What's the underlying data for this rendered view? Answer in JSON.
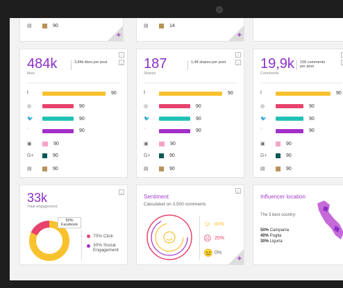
{
  "colors": {
    "yellow": "#f8c22e",
    "pink": "#e8436d",
    "teal": "#21c2b6",
    "purple": "#a22fc7",
    "lightpink": "#f5a3c7",
    "darkteal": "#0b5957",
    "tan": "#b8925a"
  },
  "top_row": [
    {
      "value": "90"
    },
    {
      "value": "14"
    }
  ],
  "cards": [
    {
      "big": "484k",
      "sub": "likes",
      "per": "3,84k likes per post",
      "rows": [
        {
          "icon": "f",
          "value": "90",
          "color": "yellow",
          "len": 0.72,
          "type": "bar"
        },
        {
          "icon": "◎",
          "value": "90",
          "color": "pink",
          "len": 0.36,
          "type": "bar"
        },
        {
          "icon": "🐦",
          "value": "90",
          "color": "teal",
          "len": 0.36,
          "type": "bar"
        },
        {
          "icon": "ʾ",
          "value": "90",
          "color": "purple",
          "len": 0.36,
          "type": "bar"
        },
        {
          "icon": "▣",
          "value": "90",
          "color": "lightpink",
          "len": 0.06,
          "type": "sq"
        },
        {
          "icon": "G+",
          "value": "90",
          "color": "darkteal",
          "len": 0.04,
          "type": "sq"
        },
        {
          "icon": "▤",
          "value": "90",
          "color": "tan",
          "len": 0.04,
          "type": "sq"
        }
      ]
    },
    {
      "big": "187",
      "sub": "Shares",
      "per": "1,48 shares per post",
      "rows": [
        {
          "icon": "f",
          "value": "90",
          "color": "yellow",
          "len": 0.72,
          "type": "bar"
        },
        {
          "icon": "◎",
          "value": "90",
          "color": "pink",
          "len": 0.36,
          "type": "bar"
        },
        {
          "icon": "🐦",
          "value": "90",
          "color": "teal",
          "len": 0.36,
          "type": "bar"
        },
        {
          "icon": "ʾ",
          "value": "90",
          "color": "purple",
          "len": 0.36,
          "type": "bar"
        },
        {
          "icon": "▣",
          "value": "90",
          "color": "lightpink",
          "len": 0.06,
          "type": "sq"
        },
        {
          "icon": "G+",
          "value": "90",
          "color": "darkteal",
          "len": 0.04,
          "type": "sq"
        },
        {
          "icon": "▤",
          "value": "90",
          "color": "tan",
          "len": 0.04,
          "type": "sq"
        }
      ]
    },
    {
      "big": "19,9k",
      "sub": "Comments",
      "per": "158 comments per post",
      "rows": [
        {
          "icon": "f",
          "value": "90",
          "color": "yellow",
          "len": 0.72,
          "type": "bar"
        },
        {
          "icon": "◎",
          "value": "90",
          "color": "pink",
          "len": 0.36,
          "type": "bar"
        },
        {
          "icon": "🐦",
          "value": "90",
          "color": "teal",
          "len": 0.36,
          "type": "bar"
        },
        {
          "icon": "ʾ",
          "value": "90",
          "color": "purple",
          "len": 0.36,
          "type": "bar"
        },
        {
          "icon": "▣",
          "value": "90",
          "color": "lightpink",
          "len": 0.06,
          "type": "sq"
        },
        {
          "icon": "G+",
          "value": "90",
          "color": "darkteal",
          "len": 0.04,
          "type": "sq"
        },
        {
          "icon": "▤",
          "value": "90",
          "color": "tan",
          "len": 0.04,
          "type": "sq"
        }
      ]
    }
  ],
  "engagement": {
    "big": "33k",
    "sub": "Total engagement",
    "callout": "50% Facebook",
    "legend": [
      {
        "label": "70% Click",
        "color": "pink"
      },
      {
        "label": "30% Social Engagement",
        "color": "purple"
      }
    ]
  },
  "sentiment": {
    "title": "Sentiment",
    "subtitle": "Calculated on 3,500 comments",
    "items": [
      {
        "face": "☺",
        "value": "80%",
        "color": "#f8c22e"
      },
      {
        "face": "☹",
        "value": "20%",
        "color": "#e8436d"
      },
      {
        "face": "😐",
        "value": "0%",
        "color": "#666666"
      }
    ]
  },
  "influencer": {
    "title": "Influencer location",
    "intro": "The 3 best country:",
    "items": [
      {
        "pct": "50%",
        "name": "Campania"
      },
      {
        "pct": "40%",
        "name": "Puglia"
      },
      {
        "pct": "30%",
        "name": "Liguria"
      }
    ]
  },
  "icons": {
    "plus": "+",
    "info": "i",
    "download": "⤓"
  }
}
